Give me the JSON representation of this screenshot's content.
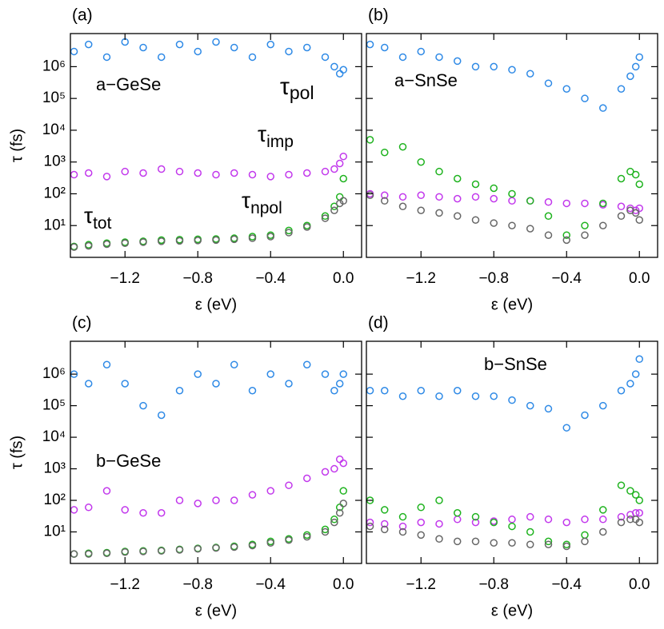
{
  "chart_data": [
    {
      "type": "scatter",
      "panel_label": "(a)",
      "annotation": "a−GeSe",
      "xlabel": "ε (eV)",
      "ylabel": "τ (fs)",
      "log_y": true,
      "xlim": [
        -1.5,
        0.1
      ],
      "ylim": [
        1,
        11000000
      ],
      "xticks": [
        {
          "value": -1.2,
          "label": "−1.2"
        },
        {
          "value": -0.8,
          "label": "−0.8"
        },
        {
          "value": -0.4,
          "label": "−0.4"
        },
        {
          "value": 0,
          "label": "0.0"
        }
      ],
      "yticks": [
        {
          "value": 10,
          "label": "10¹"
        },
        {
          "value": 100,
          "label": "10²"
        },
        {
          "value": 1000,
          "label": "10³"
        },
        {
          "value": 10000,
          "label": "10⁴"
        },
        {
          "value": 100000,
          "label": "10⁵"
        },
        {
          "value": 1000000,
          "label": "10⁶"
        }
      ],
      "x": [
        -1.48,
        -1.4,
        -1.3,
        -1.2,
        -1.1,
        -1.0,
        -0.9,
        -0.8,
        -0.7,
        -0.6,
        -0.5,
        -0.4,
        -0.3,
        -0.2,
        -0.1,
        -0.05,
        -0.02,
        0.0
      ],
      "series": [
        {
          "name": "τpol",
          "color": "#2f8ae6",
          "values": [
            3000000,
            5000000,
            2000000,
            6000000,
            4000000,
            2000000,
            5000000,
            3000000,
            6000000,
            4000000,
            2000000,
            5000000,
            3000000,
            4000000,
            2000000,
            1000000,
            600000,
            800000
          ]
        },
        {
          "name": "τimp",
          "color": "#c238ec",
          "values": [
            400,
            450,
            350,
            500,
            450,
            600,
            500,
            450,
            400,
            450,
            400,
            350,
            400,
            450,
            500,
            600,
            900,
            1500
          ]
        },
        {
          "name": "τnpol",
          "color": "#1fb31f",
          "values": [
            2.2,
            2.5,
            2.8,
            3,
            3.2,
            3.5,
            3.6,
            3.7,
            3.8,
            4,
            4.5,
            5,
            7,
            10,
            20,
            40,
            80,
            300
          ]
        },
        {
          "name": "τtot",
          "color": "#676767",
          "values": [
            2.1,
            2.3,
            2.6,
            2.8,
            3,
            3.2,
            3.3,
            3.4,
            3.5,
            3.7,
            4,
            4.5,
            6,
            9,
            17,
            30,
            50,
            60
          ]
        }
      ]
    },
    {
      "type": "scatter",
      "panel_label": "(b)",
      "annotation": "a−SnSe",
      "xlabel": "ε (eV)",
      "log_y": true,
      "xlim": [
        -1.5,
        0.1
      ],
      "ylim": [
        1,
        11000000
      ],
      "xticks": [
        {
          "value": -1.2,
          "label": "−1.2"
        },
        {
          "value": -0.8,
          "label": "−0.8"
        },
        {
          "value": -0.4,
          "label": "−0.4"
        },
        {
          "value": 0,
          "label": "0.0"
        }
      ],
      "yticks": [
        10,
        100,
        1000,
        10000,
        100000,
        1000000
      ],
      "x": [
        -1.48,
        -1.4,
        -1.3,
        -1.2,
        -1.1,
        -1.0,
        -0.9,
        -0.8,
        -0.7,
        -0.6,
        -0.5,
        -0.4,
        -0.3,
        -0.2,
        -0.1,
        -0.05,
        -0.02,
        0.0
      ],
      "series": [
        {
          "color": "#2f8ae6",
          "values": [
            5000000,
            4000000,
            2000000,
            3000000,
            2000000,
            1500000,
            1000000,
            1000000,
            800000,
            600000,
            300000,
            200000,
            100000,
            50000,
            200000,
            500000,
            1000000,
            2000000
          ]
        },
        {
          "color": "#c238ec",
          "values": [
            100,
            90,
            80,
            90,
            80,
            70,
            80,
            70,
            60,
            60,
            55,
            50,
            50,
            45,
            40,
            35,
            30,
            35
          ]
        },
        {
          "color": "#1fb31f",
          "values": [
            5000,
            2000,
            3000,
            1000,
            500,
            300,
            200,
            150,
            100,
            60,
            20,
            5,
            10,
            50,
            300,
            500,
            400,
            200
          ]
        },
        {
          "color": "#676767",
          "values": [
            90,
            60,
            40,
            30,
            25,
            20,
            15,
            12,
            10,
            8,
            5,
            3.5,
            5,
            10,
            20,
            30,
            25,
            15
          ]
        }
      ]
    },
    {
      "type": "scatter",
      "panel_label": "(c)",
      "annotation": "b−GeSe",
      "xlabel": "ε (eV)",
      "ylabel": "τ (fs)",
      "log_y": true,
      "xlim": [
        -1.5,
        0.1
      ],
      "ylim": [
        1,
        11000000
      ],
      "xticks": [
        {
          "value": -1.2,
          "label": "−1.2"
        },
        {
          "value": -0.8,
          "label": "−0.8"
        },
        {
          "value": -0.4,
          "label": "−0.4"
        },
        {
          "value": 0,
          "label": "0.0"
        }
      ],
      "yticks": [
        {
          "value": 10,
          "label": "10¹"
        },
        {
          "value": 100,
          "label": "10²"
        },
        {
          "value": 1000,
          "label": "10³"
        },
        {
          "value": 10000,
          "label": "10⁴"
        },
        {
          "value": 100000,
          "label": "10⁵"
        },
        {
          "value": 1000000,
          "label": "10⁶"
        }
      ],
      "x": [
        -1.48,
        -1.4,
        -1.3,
        -1.2,
        -1.1,
        -1.0,
        -0.9,
        -0.8,
        -0.7,
        -0.6,
        -0.5,
        -0.4,
        -0.3,
        -0.2,
        -0.1,
        -0.05,
        -0.02,
        0.0
      ],
      "series": [
        {
          "color": "#2f8ae6",
          "values": [
            1000000,
            500000,
            2000000,
            500000,
            100000,
            50000,
            300000,
            1000000,
            500000,
            2000000,
            300000,
            1000000,
            500000,
            2000000,
            1000000,
            300000,
            500000,
            1000000
          ]
        },
        {
          "color": "#c238ec",
          "values": [
            50,
            60,
            200,
            50,
            40,
            40,
            100,
            80,
            100,
            100,
            150,
            200,
            300,
            500,
            800,
            1000,
            2000,
            1500
          ]
        },
        {
          "color": "#1fb31f",
          "values": [
            2,
            2.1,
            2.2,
            2.4,
            2.5,
            2.6,
            2.8,
            3,
            3.2,
            3.5,
            4,
            5,
            6,
            8,
            12,
            25,
            60,
            200
          ]
        },
        {
          "color": "#676767",
          "values": [
            2,
            2,
            2.1,
            2.3,
            2.4,
            2.5,
            2.7,
            2.9,
            3.1,
            3.3,
            3.7,
            4.5,
            5.5,
            7,
            10,
            20,
            40,
            80
          ]
        }
      ]
    },
    {
      "type": "scatter",
      "panel_label": "(d)",
      "annotation": "b−SnSe",
      "xlabel": "ε (eV)",
      "log_y": true,
      "xlim": [
        -1.5,
        0.1
      ],
      "ylim": [
        1,
        11000000
      ],
      "xticks": [
        {
          "value": -1.2,
          "label": "−1.2"
        },
        {
          "value": -0.8,
          "label": "−0.8"
        },
        {
          "value": -0.4,
          "label": "−0.4"
        },
        {
          "value": 0,
          "label": "0.0"
        }
      ],
      "yticks": [
        10,
        100,
        1000,
        10000,
        100000,
        1000000
      ],
      "x": [
        -1.48,
        -1.4,
        -1.3,
        -1.2,
        -1.1,
        -1.0,
        -0.9,
        -0.8,
        -0.7,
        -0.6,
        -0.5,
        -0.4,
        -0.3,
        -0.2,
        -0.1,
        -0.05,
        -0.02,
        0.0
      ],
      "series": [
        {
          "color": "#2f8ae6",
          "values": [
            300000,
            300000,
            200000,
            300000,
            200000,
            300000,
            200000,
            200000,
            150000,
            100000,
            80000,
            20000,
            50000,
            100000,
            300000,
            500000,
            1000000,
            3000000
          ]
        },
        {
          "color": "#c238ec",
          "values": [
            20,
            18,
            15,
            20,
            18,
            25,
            20,
            22,
            25,
            30,
            25,
            20,
            25,
            25,
            30,
            35,
            40,
            40
          ]
        },
        {
          "color": "#1fb31f",
          "values": [
            100,
            50,
            30,
            60,
            100,
            40,
            30,
            20,
            15,
            10,
            5,
            4,
            8,
            50,
            300,
            200,
            150,
            100
          ]
        },
        {
          "color": "#676767",
          "values": [
            15,
            12,
            10,
            8,
            6,
            5,
            5,
            4.5,
            4.5,
            4,
            4,
            3.5,
            5,
            10,
            20,
            25,
            25,
            20
          ]
        }
      ]
    }
  ]
}
